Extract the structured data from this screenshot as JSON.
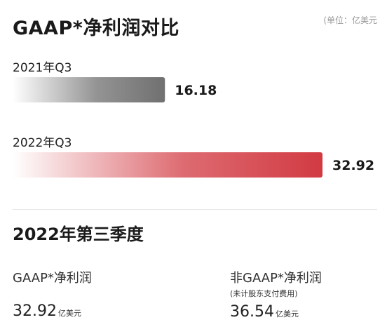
{
  "header": {
    "title": "GAAP*净利润对比",
    "unit": "(单位：亿美元"
  },
  "chart_data": {
    "type": "bar",
    "orientation": "horizontal",
    "categories": [
      "2021年Q3",
      "2022年Q3"
    ],
    "values": [
      16.18,
      32.92
    ],
    "bar_colors": [
      "#707070",
      "#d23a42"
    ],
    "title": "GAAP*净利润对比",
    "xlabel": "",
    "ylabel": "",
    "xlim": [
      0,
      32.92
    ],
    "grid": false
  },
  "section": {
    "title": "2022年第三季度"
  },
  "metrics": [
    {
      "label": "GAAP*净利润",
      "sub": "",
      "value": "32.92",
      "unit": "亿美元"
    },
    {
      "label": "非GAAP*净利润",
      "sub": "(未计股东支付费用)",
      "value": "36.54",
      "unit": "亿美元"
    }
  ]
}
